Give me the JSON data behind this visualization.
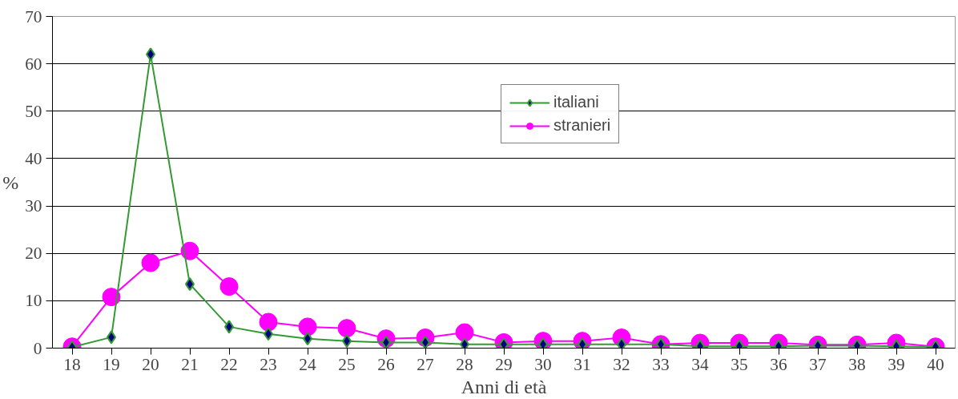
{
  "chart_data": {
    "type": "line",
    "xlabel": "Anni di età",
    "ylabel": "%",
    "categories": [
      "18",
      "19",
      "20",
      "21",
      "22",
      "23",
      "24",
      "25",
      "26",
      "27",
      "28",
      "29",
      "30",
      "31",
      "32",
      "33",
      "34",
      "35",
      "36",
      "37",
      "38",
      "39",
      "40"
    ],
    "series": [
      {
        "name": "italiani",
        "color": "#339933",
        "marker": "diamond",
        "values": [
          0.2,
          2.3,
          62,
          13.5,
          4.5,
          3,
          2,
          1.5,
          1.2,
          1.2,
          0.8,
          0.8,
          0.8,
          0.8,
          0.8,
          0.8,
          0.4,
          0.4,
          0.4,
          0.5,
          0.5,
          0.4,
          0.3
        ]
      },
      {
        "name": "stranieri",
        "color": "#ff00ff",
        "marker": "circle",
        "values": [
          0.3,
          10.8,
          18,
          20.5,
          13,
          5.5,
          4.5,
          4.2,
          2,
          2.2,
          3.3,
          1.2,
          1.5,
          1.5,
          2.2,
          0.8,
          1.1,
          1.1,
          1.1,
          0.7,
          0.7,
          1.1,
          0.3
        ]
      }
    ],
    "ylim": [
      0,
      70
    ],
    "yticks": [
      0,
      10,
      20,
      30,
      40,
      50,
      60,
      70
    ],
    "grid": "y",
    "legend": "top"
  }
}
